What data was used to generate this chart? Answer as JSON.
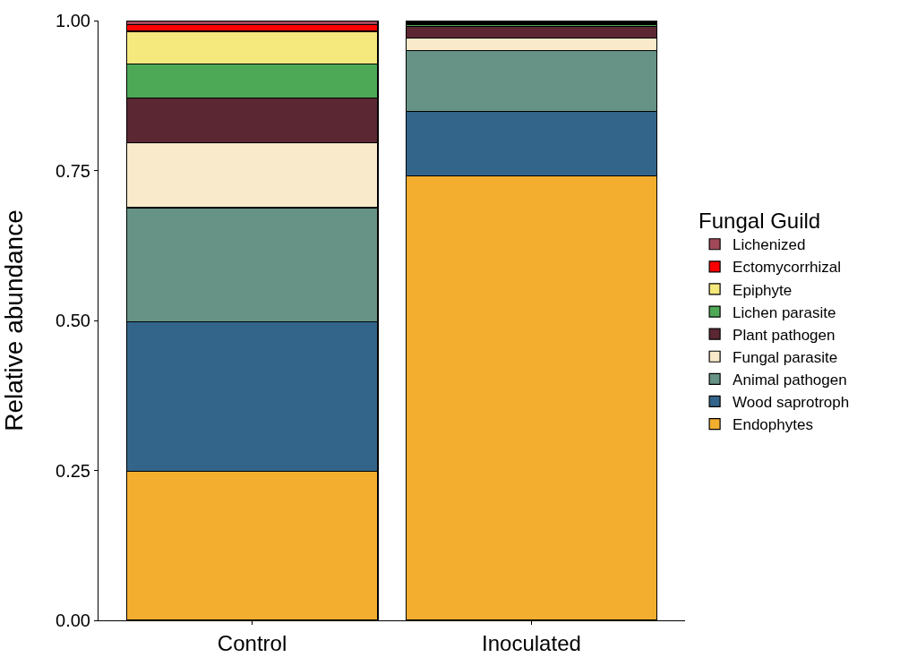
{
  "chart_data": {
    "type": "bar",
    "stacked": true,
    "ylabel": "Relative abundance",
    "legend_title": "Fungal Guild",
    "legend": "right",
    "categories": [
      "Control",
      "Inoculated"
    ],
    "ylim": [
      0,
      1
    ],
    "yticks": [
      {
        "value": 0,
        "label": "0.00"
      },
      {
        "value": 0.25,
        "label": "0.25"
      },
      {
        "value": 0.5,
        "label": "0.50"
      },
      {
        "value": 0.75,
        "label": "0.75"
      },
      {
        "value": 1,
        "label": "1.00"
      }
    ],
    "series": [
      {
        "name": "Endophytes",
        "color": "#f3ae2f",
        "values": [
          0.249,
          0.741
        ]
      },
      {
        "name": "Wood saprotroph",
        "color": "#33658a",
        "values": [
          0.249,
          0.108
        ]
      },
      {
        "name": "Animal pathogen",
        "color": "#679387",
        "values": [
          0.19,
          0.101
        ]
      },
      {
        "name": "Fungal parasite",
        "color": "#f8eaca",
        "values": [
          0.108,
          0.021
        ]
      },
      {
        "name": "Plant pathogen",
        "color": "#5a2733",
        "values": [
          0.075,
          0.019
        ]
      },
      {
        "name": "Lichen parasite",
        "color": "#4ea957",
        "values": [
          0.057,
          0.003
        ]
      },
      {
        "name": "Epiphyte",
        "color": "#f5e97e",
        "values": [
          0.054,
          0.002
        ]
      },
      {
        "name": "Ectomycorrhizal",
        "color": "#fe0000",
        "values": [
          0.011,
          0.002
        ]
      },
      {
        "name": "Lichenized",
        "color": "#a24858",
        "values": [
          0.007,
          0.003
        ]
      }
    ]
  }
}
